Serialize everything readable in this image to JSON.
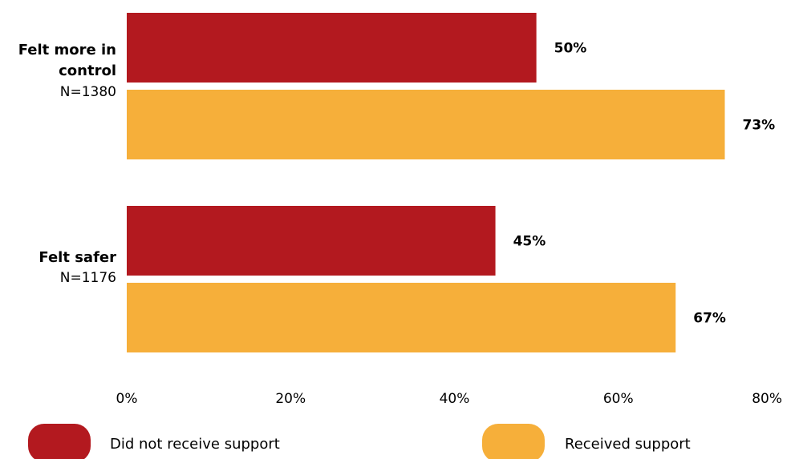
{
  "chart_data": {
    "type": "bar",
    "orientation": "horizontal",
    "categories": [
      {
        "name": "Felt more in control",
        "n": "N=1380"
      },
      {
        "name": "Felt safer",
        "n": "N=1176"
      }
    ],
    "series": [
      {
        "name": "Did not receive support",
        "color": "#b3191f",
        "values": [
          50,
          45
        ],
        "labels": [
          "50%",
          "45%"
        ]
      },
      {
        "name": "Received support",
        "color": "#f6af3a",
        "values": [
          73,
          67
        ],
        "labels": [
          "73%",
          "67%"
        ]
      }
    ],
    "xlim": [
      0,
      80
    ],
    "x_ticks": [
      {
        "value": 0,
        "label": "0%"
      },
      {
        "value": 20,
        "label": "20%"
      },
      {
        "value": 40,
        "label": "40%"
      },
      {
        "value": 60,
        "label": "60%"
      },
      {
        "value": 80,
        "label": "80%"
      }
    ],
    "grid": false,
    "legend": "bottom"
  }
}
